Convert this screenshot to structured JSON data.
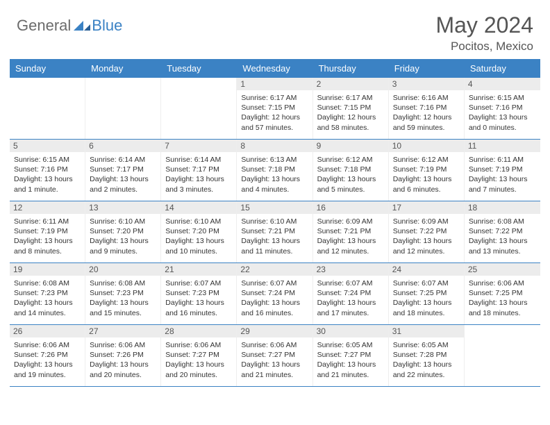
{
  "brand": {
    "general": "General",
    "blue": "Blue"
  },
  "title": "May 2024",
  "location": "Pocitos, Mexico",
  "colors": {
    "header_bar": "#3b82c4",
    "day_label_bg": "#ececec",
    "rule": "#3b82c4",
    "logo_gray": "#6b6b6b",
    "logo_blue": "#3b82c4"
  },
  "weekdays": [
    "Sunday",
    "Monday",
    "Tuesday",
    "Wednesday",
    "Thursday",
    "Friday",
    "Saturday"
  ],
  "weeks": [
    [
      {
        "n": "",
        "sunrise": "",
        "sunset": "",
        "daylight": ""
      },
      {
        "n": "",
        "sunrise": "",
        "sunset": "",
        "daylight": ""
      },
      {
        "n": "",
        "sunrise": "",
        "sunset": "",
        "daylight": ""
      },
      {
        "n": "1",
        "sunrise": "Sunrise: 6:17 AM",
        "sunset": "Sunset: 7:15 PM",
        "daylight": "Daylight: 12 hours and 57 minutes."
      },
      {
        "n": "2",
        "sunrise": "Sunrise: 6:17 AM",
        "sunset": "Sunset: 7:15 PM",
        "daylight": "Daylight: 12 hours and 58 minutes."
      },
      {
        "n": "3",
        "sunrise": "Sunrise: 6:16 AM",
        "sunset": "Sunset: 7:16 PM",
        "daylight": "Daylight: 12 hours and 59 minutes."
      },
      {
        "n": "4",
        "sunrise": "Sunrise: 6:15 AM",
        "sunset": "Sunset: 7:16 PM",
        "daylight": "Daylight: 13 hours and 0 minutes."
      }
    ],
    [
      {
        "n": "5",
        "sunrise": "Sunrise: 6:15 AM",
        "sunset": "Sunset: 7:16 PM",
        "daylight": "Daylight: 13 hours and 1 minute."
      },
      {
        "n": "6",
        "sunrise": "Sunrise: 6:14 AM",
        "sunset": "Sunset: 7:17 PM",
        "daylight": "Daylight: 13 hours and 2 minutes."
      },
      {
        "n": "7",
        "sunrise": "Sunrise: 6:14 AM",
        "sunset": "Sunset: 7:17 PM",
        "daylight": "Daylight: 13 hours and 3 minutes."
      },
      {
        "n": "8",
        "sunrise": "Sunrise: 6:13 AM",
        "sunset": "Sunset: 7:18 PM",
        "daylight": "Daylight: 13 hours and 4 minutes."
      },
      {
        "n": "9",
        "sunrise": "Sunrise: 6:12 AM",
        "sunset": "Sunset: 7:18 PM",
        "daylight": "Daylight: 13 hours and 5 minutes."
      },
      {
        "n": "10",
        "sunrise": "Sunrise: 6:12 AM",
        "sunset": "Sunset: 7:19 PM",
        "daylight": "Daylight: 13 hours and 6 minutes."
      },
      {
        "n": "11",
        "sunrise": "Sunrise: 6:11 AM",
        "sunset": "Sunset: 7:19 PM",
        "daylight": "Daylight: 13 hours and 7 minutes."
      }
    ],
    [
      {
        "n": "12",
        "sunrise": "Sunrise: 6:11 AM",
        "sunset": "Sunset: 7:19 PM",
        "daylight": "Daylight: 13 hours and 8 minutes."
      },
      {
        "n": "13",
        "sunrise": "Sunrise: 6:10 AM",
        "sunset": "Sunset: 7:20 PM",
        "daylight": "Daylight: 13 hours and 9 minutes."
      },
      {
        "n": "14",
        "sunrise": "Sunrise: 6:10 AM",
        "sunset": "Sunset: 7:20 PM",
        "daylight": "Daylight: 13 hours and 10 minutes."
      },
      {
        "n": "15",
        "sunrise": "Sunrise: 6:10 AM",
        "sunset": "Sunset: 7:21 PM",
        "daylight": "Daylight: 13 hours and 11 minutes."
      },
      {
        "n": "16",
        "sunrise": "Sunrise: 6:09 AM",
        "sunset": "Sunset: 7:21 PM",
        "daylight": "Daylight: 13 hours and 12 minutes."
      },
      {
        "n": "17",
        "sunrise": "Sunrise: 6:09 AM",
        "sunset": "Sunset: 7:22 PM",
        "daylight": "Daylight: 13 hours and 12 minutes."
      },
      {
        "n": "18",
        "sunrise": "Sunrise: 6:08 AM",
        "sunset": "Sunset: 7:22 PM",
        "daylight": "Daylight: 13 hours and 13 minutes."
      }
    ],
    [
      {
        "n": "19",
        "sunrise": "Sunrise: 6:08 AM",
        "sunset": "Sunset: 7:23 PM",
        "daylight": "Daylight: 13 hours and 14 minutes."
      },
      {
        "n": "20",
        "sunrise": "Sunrise: 6:08 AM",
        "sunset": "Sunset: 7:23 PM",
        "daylight": "Daylight: 13 hours and 15 minutes."
      },
      {
        "n": "21",
        "sunrise": "Sunrise: 6:07 AM",
        "sunset": "Sunset: 7:23 PM",
        "daylight": "Daylight: 13 hours and 16 minutes."
      },
      {
        "n": "22",
        "sunrise": "Sunrise: 6:07 AM",
        "sunset": "Sunset: 7:24 PM",
        "daylight": "Daylight: 13 hours and 16 minutes."
      },
      {
        "n": "23",
        "sunrise": "Sunrise: 6:07 AM",
        "sunset": "Sunset: 7:24 PM",
        "daylight": "Daylight: 13 hours and 17 minutes."
      },
      {
        "n": "24",
        "sunrise": "Sunrise: 6:07 AM",
        "sunset": "Sunset: 7:25 PM",
        "daylight": "Daylight: 13 hours and 18 minutes."
      },
      {
        "n": "25",
        "sunrise": "Sunrise: 6:06 AM",
        "sunset": "Sunset: 7:25 PM",
        "daylight": "Daylight: 13 hours and 18 minutes."
      }
    ],
    [
      {
        "n": "26",
        "sunrise": "Sunrise: 6:06 AM",
        "sunset": "Sunset: 7:26 PM",
        "daylight": "Daylight: 13 hours and 19 minutes."
      },
      {
        "n": "27",
        "sunrise": "Sunrise: 6:06 AM",
        "sunset": "Sunset: 7:26 PM",
        "daylight": "Daylight: 13 hours and 20 minutes."
      },
      {
        "n": "28",
        "sunrise": "Sunrise: 6:06 AM",
        "sunset": "Sunset: 7:27 PM",
        "daylight": "Daylight: 13 hours and 20 minutes."
      },
      {
        "n": "29",
        "sunrise": "Sunrise: 6:06 AM",
        "sunset": "Sunset: 7:27 PM",
        "daylight": "Daylight: 13 hours and 21 minutes."
      },
      {
        "n": "30",
        "sunrise": "Sunrise: 6:05 AM",
        "sunset": "Sunset: 7:27 PM",
        "daylight": "Daylight: 13 hours and 21 minutes."
      },
      {
        "n": "31",
        "sunrise": "Sunrise: 6:05 AM",
        "sunset": "Sunset: 7:28 PM",
        "daylight": "Daylight: 13 hours and 22 minutes."
      },
      {
        "n": "",
        "sunrise": "",
        "sunset": "",
        "daylight": ""
      }
    ]
  ]
}
